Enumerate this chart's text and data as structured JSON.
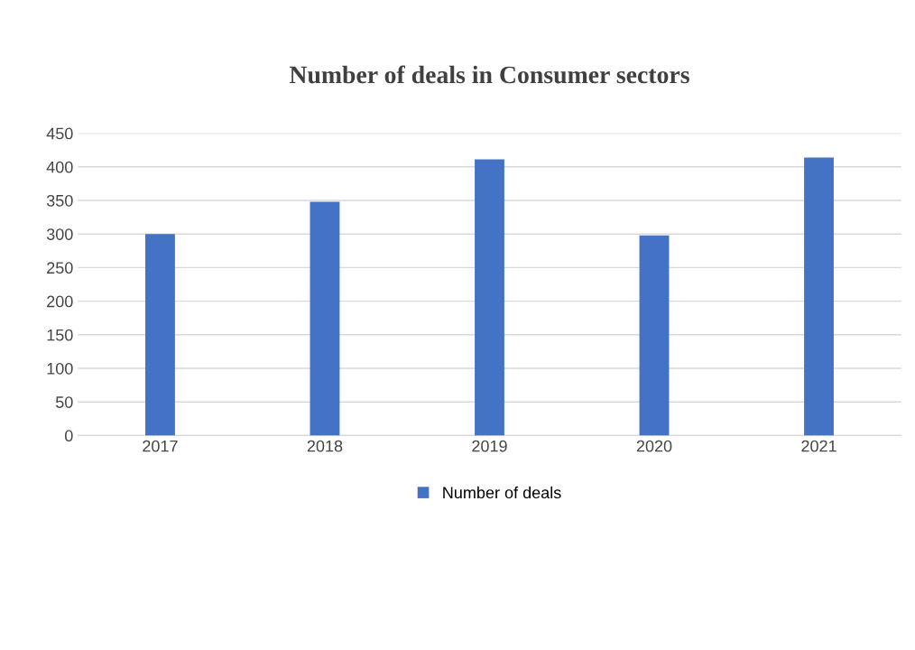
{
  "chart_data": {
    "type": "bar",
    "title": "Number of deals in Consumer sectors",
    "categories": [
      "2017",
      "2018",
      "2019",
      "2020",
      "2021"
    ],
    "series": [
      {
        "name": "Number of deals",
        "color": "#4472c4",
        "values": [
          300,
          348,
          411,
          298,
          414
        ]
      }
    ],
    "ylim": [
      0,
      450
    ],
    "yticks": [
      0,
      50,
      100,
      150,
      200,
      250,
      300,
      350,
      400,
      450
    ],
    "grid": "y",
    "legend": "bottom"
  }
}
